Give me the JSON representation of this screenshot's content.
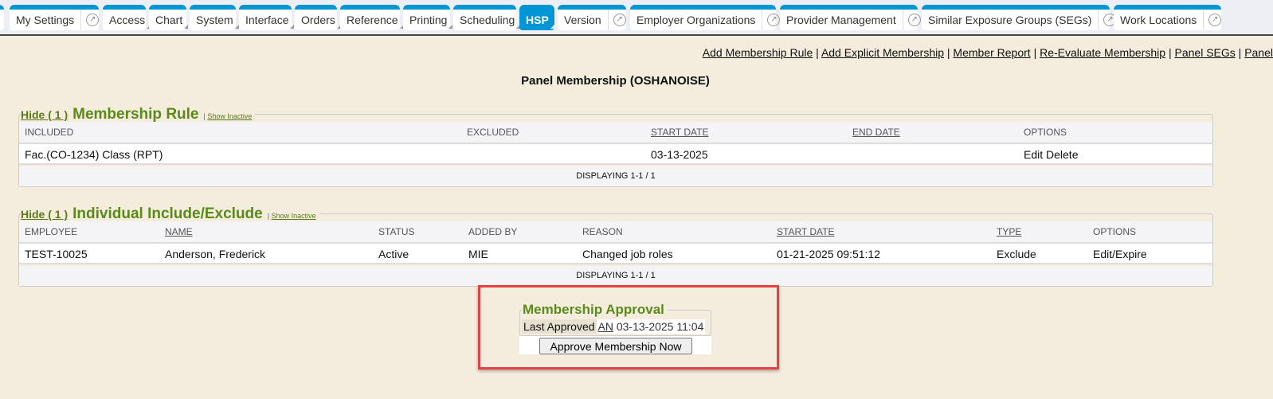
{
  "tabs": [
    {
      "label": "",
      "ext": true
    },
    {
      "label": "My Settings",
      "ext": true
    },
    {
      "label": "Access",
      "dd": true
    },
    {
      "label": "Chart",
      "dd": true
    },
    {
      "label": "System",
      "dd": true
    },
    {
      "label": "Interface",
      "dd": true
    },
    {
      "label": "Orders",
      "dd": true
    },
    {
      "label": "Reference",
      "dd": true
    },
    {
      "label": "Printing",
      "dd": true
    },
    {
      "label": "Scheduling",
      "dd": true
    },
    {
      "label": "HSP",
      "dd": true,
      "active": true
    },
    {
      "label": "Version",
      "ext": true
    },
    {
      "label": "Employer Organizations",
      "ext": true
    },
    {
      "label": "Provider Management",
      "ext": true
    },
    {
      "label": "Similar Exposure Groups (SEGs)",
      "ext": true
    },
    {
      "label": "Work Locations",
      "ext": true
    }
  ],
  "links": [
    "Add Membership Rule",
    "Add Explicit Membership",
    "Member Report",
    "Re-Evaluate Membership",
    "Panel SEGs",
    "Panel"
  ],
  "title": "Panel Membership (OSHANOISE)",
  "rule": {
    "hide": "Hide ( 1 )",
    "heading": "Membership Rule",
    "show_inactive": "Show Inactive",
    "columns": [
      "INCLUDED",
      "EXCLUDED",
      "START DATE",
      "END DATE",
      "OPTIONS"
    ],
    "row": [
      "Fac.(CO-1234) Class (RPT)",
      "",
      "03-13-2025",
      "",
      "Edit Delete"
    ],
    "footer": "DISPLAYING 1-1 / 1"
  },
  "individual": {
    "hide": "Hide ( 1 )",
    "heading": "Individual Include/Exclude",
    "show_inactive": "Show Inactive",
    "columns": [
      "EMPLOYEE",
      "NAME",
      "STATUS",
      "ADDED BY",
      "REASON",
      "START DATE",
      "TYPE",
      "OPTIONS"
    ],
    "row": [
      "TEST-10025",
      "Anderson, Frederick",
      "Active",
      "MIE",
      "Changed job roles",
      "01-21-2025 09:51:12",
      "Exclude",
      "Edit/Expire"
    ],
    "footer": "DISPLAYING 1-1 / 1"
  },
  "approval": {
    "heading": "Membership Approval",
    "last_label": "Last Approved",
    "by": "AN",
    "date": "03-13-2025 11:04",
    "button": "Approve Membership Now"
  },
  "colors": {
    "tab_accent": "#0096d6",
    "heading_green": "#5a8a1a",
    "highlight": "#e84040"
  }
}
